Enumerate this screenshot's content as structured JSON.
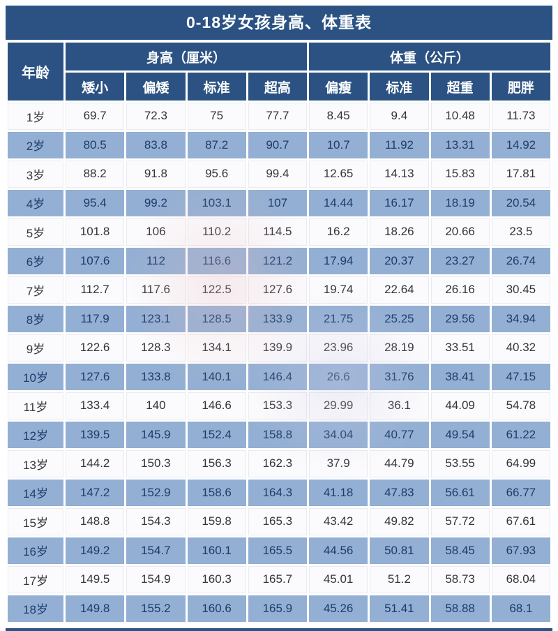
{
  "title": "0-18岁女孩身高、体重表",
  "colors": {
    "header_bg": "#2b5283",
    "row_bg": "#fbfbfd",
    "row_alt_bg": "#93afd3",
    "header_text": "#ffffff",
    "data_text_dark": "#33343a",
    "data_text_navy": "#1d3c6b"
  },
  "chart_data": {
    "type": "table",
    "title": "0-18岁女孩身高、体重表",
    "corner_header": "年龄",
    "groups": [
      {
        "label": "身高（厘米）",
        "subs": [
          "矮小",
          "偏矮",
          "标准",
          "超高"
        ]
      },
      {
        "label": "体重（公斤）",
        "subs": [
          "偏瘦",
          "标准",
          "超重",
          "肥胖"
        ]
      }
    ],
    "rows": [
      {
        "age": "1岁",
        "values": [
          69.7,
          72.3,
          75,
          77.7,
          8.45,
          9.4,
          10.48,
          11.73
        ]
      },
      {
        "age": "2岁",
        "values": [
          80.5,
          83.8,
          87.2,
          90.7,
          10.7,
          11.92,
          13.31,
          14.92
        ]
      },
      {
        "age": "3岁",
        "values": [
          88.2,
          91.8,
          95.6,
          99.4,
          12.65,
          14.13,
          15.83,
          17.81
        ]
      },
      {
        "age": "4岁",
        "values": [
          95.4,
          99.2,
          103.1,
          107,
          14.44,
          16.17,
          18.19,
          20.54
        ]
      },
      {
        "age": "5岁",
        "values": [
          101.8,
          106,
          110.2,
          114.5,
          16.2,
          18.26,
          20.66,
          23.5
        ]
      },
      {
        "age": "6岁",
        "values": [
          107.6,
          112,
          116.6,
          121.2,
          17.94,
          20.37,
          23.27,
          26.74
        ]
      },
      {
        "age": "7岁",
        "values": [
          112.7,
          117.6,
          122.5,
          127.6,
          19.74,
          22.64,
          26.16,
          30.45
        ]
      },
      {
        "age": "8岁",
        "values": [
          117.9,
          123.1,
          128.5,
          133.9,
          21.75,
          25.25,
          29.56,
          34.94
        ]
      },
      {
        "age": "9岁",
        "values": [
          122.6,
          128.3,
          134.1,
          139.9,
          23.96,
          28.19,
          33.51,
          40.32
        ]
      },
      {
        "age": "10岁",
        "values": [
          127.6,
          133.8,
          140.1,
          146.4,
          26.6,
          31.76,
          38.41,
          47.15
        ]
      },
      {
        "age": "11岁",
        "values": [
          133.4,
          140,
          146.6,
          153.3,
          29.99,
          36.1,
          44.09,
          54.78
        ]
      },
      {
        "age": "12岁",
        "values": [
          139.5,
          145.9,
          152.4,
          158.8,
          34.04,
          40.77,
          49.54,
          61.22
        ]
      },
      {
        "age": "13岁",
        "values": [
          144.2,
          150.3,
          156.3,
          162.3,
          37.9,
          44.79,
          53.55,
          64.99
        ]
      },
      {
        "age": "14岁",
        "values": [
          147.2,
          152.9,
          158.6,
          164.3,
          41.18,
          47.83,
          56.61,
          66.77
        ]
      },
      {
        "age": "15岁",
        "values": [
          148.8,
          154.3,
          159.8,
          165.3,
          43.42,
          49.82,
          57.72,
          67.61
        ]
      },
      {
        "age": "16岁",
        "values": [
          149.2,
          154.7,
          160.1,
          165.5,
          44.56,
          50.81,
          58.45,
          67.93
        ]
      },
      {
        "age": "17岁",
        "values": [
          149.5,
          154.9,
          160.3,
          165.7,
          45.01,
          51.2,
          58.73,
          68.04
        ]
      },
      {
        "age": "18岁",
        "values": [
          149.8,
          155.2,
          160.6,
          165.9,
          45.26,
          51.41,
          58.88,
          68.1
        ]
      }
    ]
  }
}
